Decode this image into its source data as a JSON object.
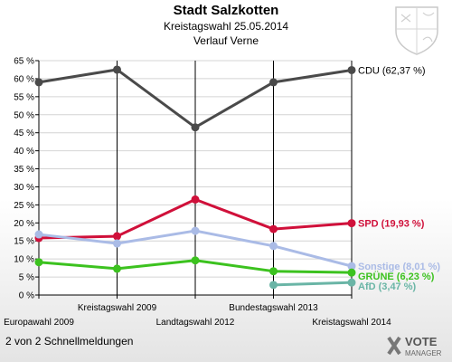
{
  "header": {
    "title": "Stadt Salzkotten",
    "subtitle": "Kreistagswahl 25.05.2014",
    "subtitle2": "Verlauf Verne"
  },
  "footer": {
    "text": "2 von 2 Schnellmeldungen",
    "logo_line1": "VOTE",
    "logo_line2": "MANAGER"
  },
  "chart_data": {
    "type": "line",
    "categories": [
      "Europawahl 2009",
      "Kreistagswahl 2009",
      "Landtagswahl 2012",
      "Bundestagswahl 2013",
      "Kreistagswahl 2014"
    ],
    "category_label_rows": [
      1,
      0,
      1,
      0,
      1
    ],
    "ylim": [
      0,
      65
    ],
    "ytick_step": 5,
    "ytick_suffix": " %",
    "grid": true,
    "series": [
      {
        "name": "CDU",
        "label": "CDU (62,37 %)",
        "color": "#4a4a4a",
        "values": [
          59.0,
          62.5,
          46.5,
          59.0,
          62.37
        ]
      },
      {
        "name": "SPD",
        "label": "SPD (19,93 %)",
        "color": "#d0103a",
        "values": [
          15.8,
          16.3,
          26.5,
          18.3,
          19.93
        ]
      },
      {
        "name": "Sonstige",
        "label": "Sonstige (8,01 %)",
        "color": "#aabbe6",
        "values": [
          16.8,
          14.3,
          17.8,
          13.6,
          8.01
        ]
      },
      {
        "name": "GRÜNE",
        "label": "GRÜNE (6,23 %)",
        "color": "#3cc21f",
        "values": [
          9.1,
          7.3,
          9.6,
          6.6,
          6.23
        ]
      },
      {
        "name": "AfD",
        "label": "AfD (3,47 %)",
        "color": "#6ab5a6",
        "values": [
          null,
          null,
          null,
          2.8,
          3.47
        ]
      }
    ]
  }
}
